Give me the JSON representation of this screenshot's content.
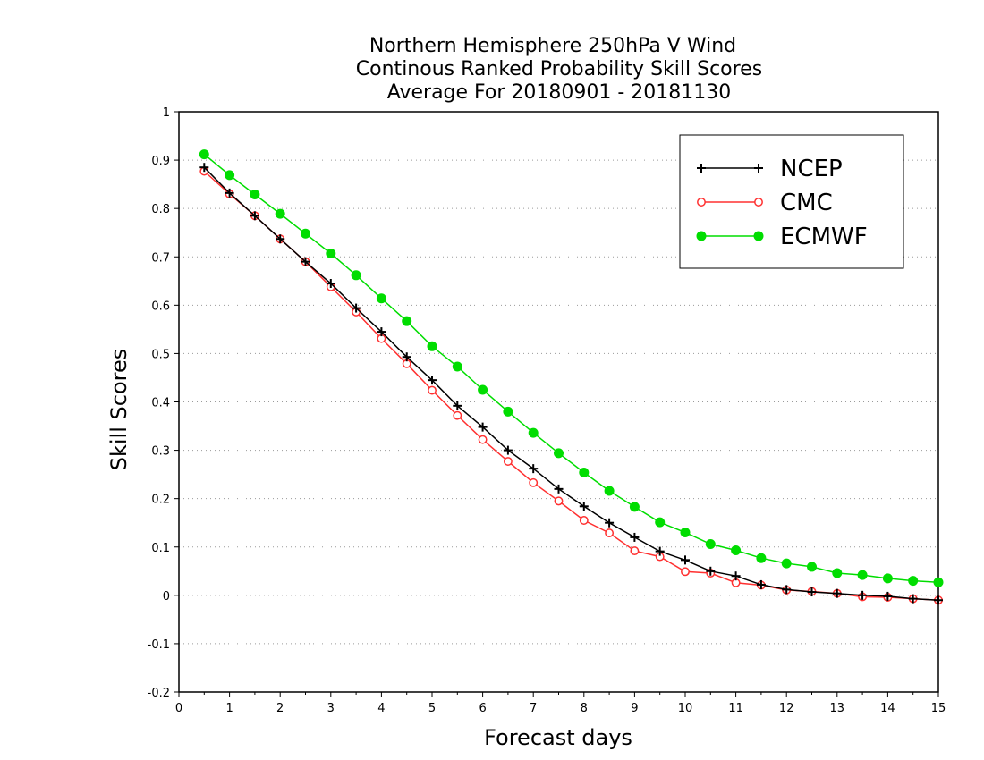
{
  "chart_data": {
    "type": "line",
    "title": [
      "Northern Hemisphere 250hPa V Wind",
      "Continous Ranked Probability Skill Scores",
      "Average For 20180901 - 20181130"
    ],
    "xlabel": "Forecast days",
    "ylabel": "Skill Scores",
    "xlim": [
      0,
      15
    ],
    "ylim": [
      -0.2,
      1
    ],
    "xticks": [
      "0",
      "1",
      "2",
      "3",
      "4",
      "5",
      "6",
      "7",
      "8",
      "9",
      "10",
      "11",
      "12",
      "13",
      "14",
      "15"
    ],
    "yticks": [
      "-0.2",
      "-0.1",
      "0",
      "0.1",
      "0.2",
      "0.3",
      "0.4",
      "0.5",
      "0.6",
      "0.7",
      "0.8",
      "0.9",
      "1"
    ],
    "grid": true,
    "legend_position": "top-right",
    "x": [
      0.5,
      1,
      1.5,
      2,
      2.5,
      3,
      3.5,
      4,
      4.5,
      5,
      5.5,
      6,
      6.5,
      7,
      7.5,
      8,
      8.5,
      9,
      9.5,
      10,
      10.5,
      11,
      11.5,
      12,
      12.5,
      13,
      13.5,
      14,
      14.5,
      15
    ],
    "series": [
      {
        "name": "NCEP",
        "color": "#000000",
        "marker": "plus",
        "values": [
          0.885,
          0.832,
          0.785,
          0.737,
          0.69,
          0.645,
          0.594,
          0.545,
          0.493,
          0.445,
          0.392,
          0.348,
          0.3,
          0.262,
          0.22,
          0.184,
          0.15,
          0.12,
          0.091,
          0.073,
          0.05,
          0.04,
          0.022,
          0.012,
          0.007,
          0.004,
          0.0,
          -0.002,
          -0.007,
          -0.01
        ]
      },
      {
        "name": "CMC",
        "color": "#ff3030",
        "marker": "open-circle",
        "values": [
          0.877,
          0.83,
          0.785,
          0.737,
          0.69,
          0.638,
          0.586,
          0.531,
          0.479,
          0.424,
          0.372,
          0.322,
          0.277,
          0.233,
          0.195,
          0.155,
          0.129,
          0.092,
          0.08,
          0.049,
          0.046,
          0.026,
          0.021,
          0.011,
          0.008,
          0.004,
          -0.003,
          -0.004,
          -0.007,
          -0.01
        ]
      },
      {
        "name": "ECMWF",
        "color": "#00dd00",
        "marker": "filled-circle",
        "values": [
          0.912,
          0.869,
          0.829,
          0.789,
          0.748,
          0.707,
          0.662,
          0.614,
          0.567,
          0.515,
          0.473,
          0.425,
          0.38,
          0.336,
          0.294,
          0.254,
          0.216,
          0.183,
          0.151,
          0.13,
          0.106,
          0.093,
          0.077,
          0.066,
          0.059,
          0.046,
          0.042,
          0.035,
          0.03,
          0.027
        ]
      }
    ]
  }
}
